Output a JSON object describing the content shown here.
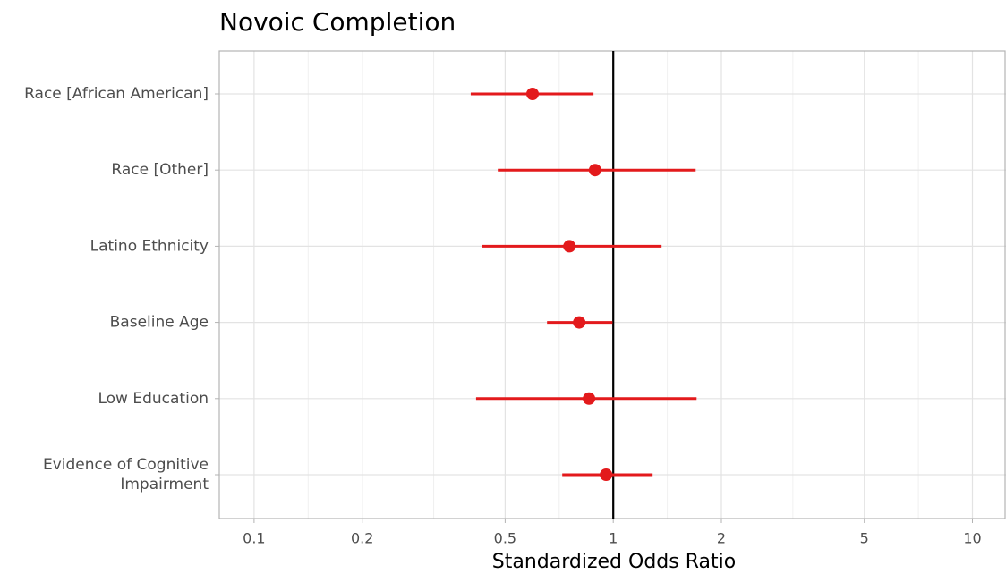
{
  "chart_data": {
    "type": "forest",
    "title": "Novoic Completion",
    "xlabel": "Standardized Odds Ratio",
    "categories": [
      "Race [African American]",
      "Race [Other]",
      "Latino Ethnicity",
      "Baseline Age",
      "Low Education",
      "Evidence of Cognitive\nImpairment"
    ],
    "values": [
      0.596,
      0.89,
      0.755,
      0.804,
      0.856,
      0.955
    ],
    "lower": [
      0.401,
      0.477,
      0.43,
      0.654,
      0.415,
      0.721
    ],
    "upper": [
      0.881,
      1.696,
      1.363,
      0.995,
      1.706,
      1.287
    ],
    "color": "#e31a1c",
    "xscale": "log",
    "xlim": [
      0.08,
      12.4
    ],
    "xticks": [
      0.1,
      0.2,
      0.5,
      1,
      2,
      5,
      10
    ],
    "refline": 1,
    "grid": true
  }
}
